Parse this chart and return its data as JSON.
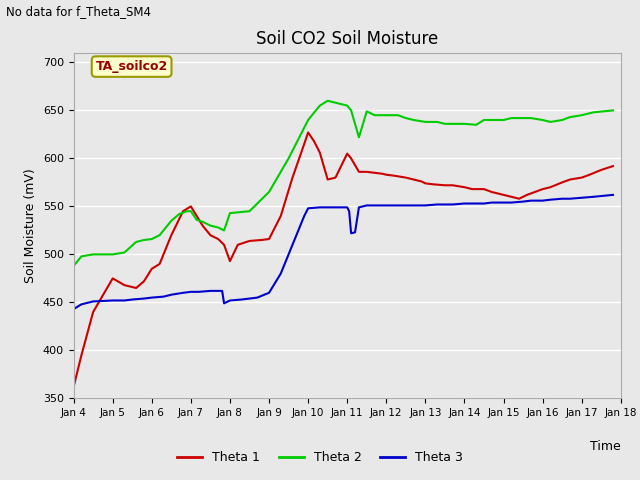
{
  "title": "Soil CO2 Soil Moisture",
  "subtitle": "No data for f_Theta_SM4",
  "ylabel": "Soil Moisture (mV)",
  "xlabel": "Time",
  "annotation": "TA_soilco2",
  "ylim": [
    350,
    710
  ],
  "yticks": [
    350,
    400,
    450,
    500,
    550,
    600,
    650,
    700
  ],
  "bg_color": "#e8e8e8",
  "plot_bg_color": "#e8e8e8",
  "legend_entries": [
    "Theta 1",
    "Theta 2",
    "Theta 3"
  ],
  "legend_colors": [
    "#cc0000",
    "#00cc00",
    "#0000cc"
  ],
  "theta1_x": [
    4,
    4.2,
    4.5,
    5.0,
    5.3,
    5.6,
    5.8,
    6.0,
    6.2,
    6.5,
    6.8,
    7.0,
    7.15,
    7.3,
    7.5,
    7.7,
    7.85,
    8.0,
    8.2,
    8.5,
    8.8,
    9.0,
    9.3,
    9.6,
    9.9,
    10.0,
    10.15,
    10.3,
    10.5,
    10.7,
    11.0,
    11.1,
    11.3,
    11.5,
    11.7,
    11.9,
    12.0,
    12.2,
    12.5,
    12.7,
    12.9,
    13.0,
    13.2,
    13.5,
    13.7,
    14.0,
    14.2,
    14.5,
    14.7,
    15.0,
    15.2,
    15.4,
    15.6,
    15.8,
    16.0,
    16.2,
    16.5,
    16.7,
    17.0,
    17.2,
    17.5,
    17.8
  ],
  "theta1_y": [
    362,
    395,
    440,
    475,
    468,
    465,
    472,
    485,
    490,
    520,
    545,
    550,
    540,
    530,
    520,
    516,
    510,
    493,
    510,
    514,
    515,
    516,
    540,
    580,
    615,
    627,
    618,
    606,
    578,
    580,
    605,
    600,
    586,
    586,
    585,
    584,
    583,
    582,
    580,
    578,
    576,
    574,
    573,
    572,
    572,
    570,
    568,
    568,
    565,
    562,
    560,
    558,
    562,
    565,
    568,
    570,
    575,
    578,
    580,
    583,
    588,
    592
  ],
  "theta2_x": [
    4,
    4.2,
    4.5,
    5.0,
    5.3,
    5.6,
    5.8,
    6.0,
    6.2,
    6.5,
    6.7,
    6.9,
    7.0,
    7.15,
    7.3,
    7.5,
    7.7,
    7.85,
    8.0,
    8.5,
    9.0,
    9.5,
    10.0,
    10.3,
    10.5,
    10.7,
    11.0,
    11.1,
    11.3,
    11.5,
    11.7,
    12.0,
    12.3,
    12.5,
    12.7,
    13.0,
    13.3,
    13.5,
    13.7,
    14.0,
    14.3,
    14.5,
    14.7,
    15.0,
    15.2,
    15.5,
    15.7,
    16.0,
    16.2,
    16.5,
    16.7,
    17.0,
    17.3,
    17.8
  ],
  "theta2_y": [
    488,
    498,
    500,
    500,
    502,
    513,
    515,
    516,
    520,
    535,
    542,
    545,
    545,
    536,
    534,
    530,
    528,
    525,
    543,
    545,
    565,
    600,
    640,
    655,
    660,
    658,
    655,
    650,
    622,
    649,
    645,
    645,
    645,
    642,
    640,
    638,
    638,
    636,
    636,
    636,
    635,
    640,
    640,
    640,
    642,
    642,
    642,
    640,
    638,
    640,
    643,
    645,
    648,
    650
  ],
  "theta3_x": [
    4,
    4.2,
    4.5,
    5.0,
    5.3,
    5.5,
    5.8,
    6.0,
    6.3,
    6.5,
    6.8,
    7.0,
    7.2,
    7.5,
    7.8,
    7.85,
    8.0,
    8.3,
    8.7,
    9.0,
    9.3,
    9.6,
    9.9,
    10.0,
    10.3,
    10.5,
    10.7,
    11.0,
    11.05,
    11.1,
    11.2,
    11.3,
    11.5,
    11.7,
    12.0,
    12.3,
    12.5,
    12.7,
    13.0,
    13.3,
    13.5,
    13.7,
    14.0,
    14.3,
    14.5,
    14.7,
    15.0,
    15.2,
    15.5,
    15.7,
    16.0,
    16.2,
    16.5,
    16.7,
    17.0,
    17.3,
    17.8
  ],
  "theta3_y": [
    443,
    448,
    451,
    452,
    452,
    453,
    454,
    455,
    456,
    458,
    460,
    461,
    461,
    462,
    462,
    449,
    452,
    453,
    455,
    460,
    480,
    510,
    540,
    548,
    549,
    549,
    549,
    549,
    545,
    522,
    523,
    549,
    551,
    551,
    551,
    551,
    551,
    551,
    551,
    552,
    552,
    552,
    553,
    553,
    553,
    554,
    554,
    554,
    555,
    556,
    556,
    557,
    558,
    558,
    559,
    560,
    562
  ]
}
